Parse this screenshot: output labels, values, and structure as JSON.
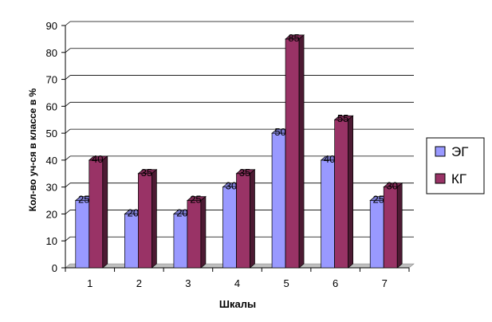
{
  "chart_data": {
    "type": "bar",
    "title": "",
    "xlabel": "Шкалы",
    "ylabel": "Кол-во уч-ся в классе в %",
    "categories": [
      "1",
      "2",
      "3",
      "4",
      "5",
      "6",
      "7"
    ],
    "series": [
      {
        "name": "ЭГ",
        "values": [
          25,
          20,
          20,
          30,
          50,
          40,
          25
        ],
        "color": "#9999FF"
      },
      {
        "name": "КГ",
        "values": [
          40,
          35,
          25,
          35,
          85,
          55,
          30
        ],
        "color": "#993366"
      }
    ],
    "ylim": [
      0,
      90
    ],
    "yticks": [
      0,
      10,
      20,
      30,
      40,
      50,
      60,
      70,
      80,
      90
    ],
    "grid": true,
    "legend_position": "right",
    "floor_color": "#C0C0C0"
  }
}
